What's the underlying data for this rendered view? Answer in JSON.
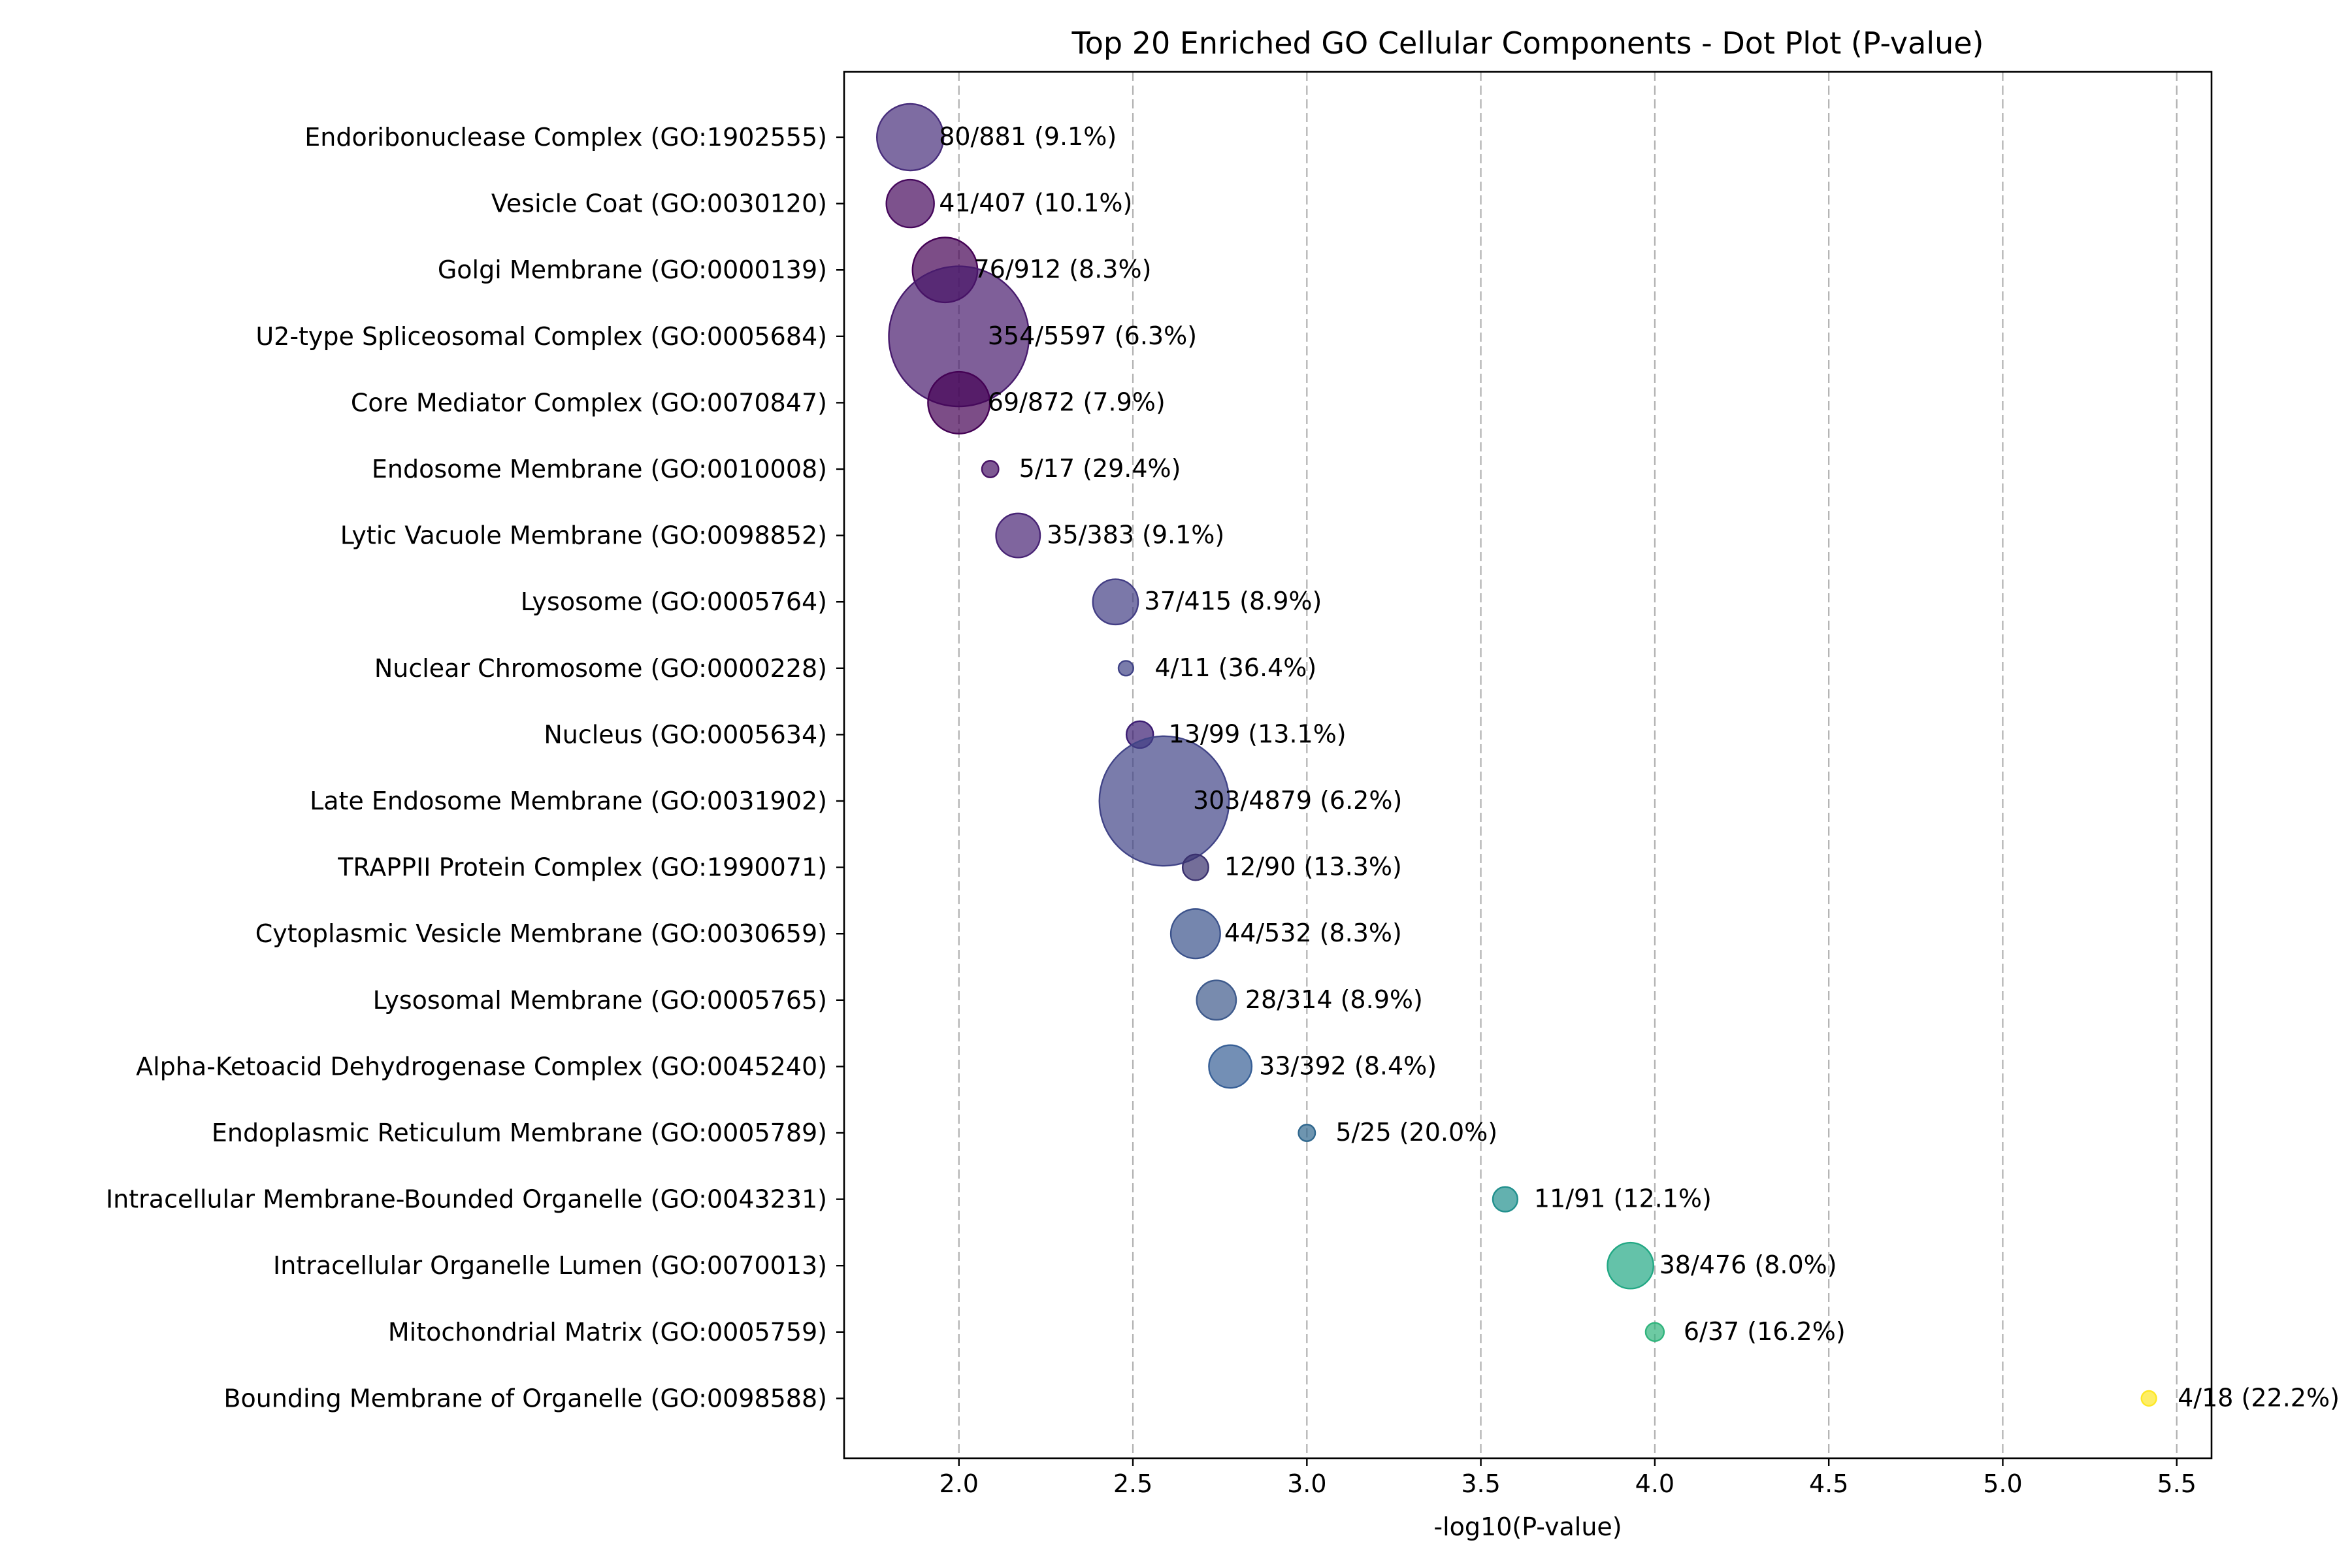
{
  "chart_data": {
    "type": "scatter",
    "title": "Top 20 Enriched GO Cellular Components - Dot Plot (P-value)",
    "xlabel": "-log10(P-value)",
    "ylabel": "",
    "xlim": [
      1.67,
      5.6
    ],
    "xticks": [
      "2.0",
      "2.5",
      "3.0",
      "3.5",
      "4.0",
      "4.5",
      "5.0",
      "5.5"
    ],
    "grid": "vertical dashed",
    "colormap": "viridis",
    "terms": [
      {
        "term": "Endoribonuclease Complex (GO:1902555)",
        "x": 1.86,
        "count": 80,
        "total": 881,
        "label": "80/881 (9.1%)",
        "color": "#472d7b"
      },
      {
        "term": "Vesicle Coat (GO:0030120)",
        "x": 1.86,
        "count": 41,
        "total": 407,
        "label": "41/407 (10.1%)",
        "color": "#46085c"
      },
      {
        "term": "Golgi Membrane (GO:0000139)",
        "x": 1.96,
        "count": 76,
        "total": 912,
        "label": "76/912 (8.3%)",
        "color": "#440154"
      },
      {
        "term": "U2-type Spliceosomal Complex (GO:0005684)",
        "x": 2.0,
        "count": 354,
        "total": 5597,
        "label": "354/5597 (6.3%)",
        "color": "#481b6d"
      },
      {
        "term": "Core Mediator Complex (GO:0070847)",
        "x": 2.0,
        "count": 69,
        "total": 872,
        "label": "69/872 (7.9%)",
        "color": "#440154"
      },
      {
        "term": "Endosome Membrane (GO:0010008)",
        "x": 2.09,
        "count": 5,
        "total": 17,
        "label": "5/17 (29.4%)",
        "color": "#471365"
      },
      {
        "term": "Lytic Vacuole Membrane (GO:0098852)",
        "x": 2.17,
        "count": 35,
        "total": 383,
        "label": "35/383 (9.1%)",
        "color": "#482475"
      },
      {
        "term": "Lysosome (GO:0005764)",
        "x": 2.45,
        "count": 37,
        "total": 415,
        "label": "37/415 (8.9%)",
        "color": "#433e85"
      },
      {
        "term": "Nuclear Chromosome (GO:0000228)",
        "x": 2.48,
        "count": 4,
        "total": 11,
        "label": "4/11 (36.4%)",
        "color": "#414487"
      },
      {
        "term": "Nucleus (GO:0005634)",
        "x": 2.52,
        "count": 13,
        "total": 99,
        "label": "13/99 (13.1%)",
        "color": "#3b1c72"
      },
      {
        "term": "Late Endosome Membrane (GO:0031902)",
        "x": 2.59,
        "count": 303,
        "total": 4879,
        "label": "303/4879 (6.2%)",
        "color": "#414487"
      },
      {
        "term": "TRAPPII Protein Complex (GO:1990071)",
        "x": 2.68,
        "count": 12,
        "total": 90,
        "label": "12/90 (13.3%)",
        "color": "#39306e"
      },
      {
        "term": "Cytoplasmic Vesicle Membrane (GO:0030659)",
        "x": 2.68,
        "count": 44,
        "total": 532,
        "label": "44/532 (8.3%)",
        "color": "#3b528b"
      },
      {
        "term": "Lysosomal Membrane (GO:0005765)",
        "x": 2.74,
        "count": 28,
        "total": 314,
        "label": "28/314 (8.9%)",
        "color": "#3e5a8c"
      },
      {
        "term": "Alpha-Ketoacid Dehydrogenase Complex (GO:0045240)",
        "x": 2.78,
        "count": 33,
        "total": 392,
        "label": "33/392 (8.4%)",
        "color": "#375f96"
      },
      {
        "term": "Endoplasmic Reticulum Membrane (GO:0005789)",
        "x": 3.0,
        "count": 5,
        "total": 25,
        "label": "5/25 (20.0%)",
        "color": "#31688e"
      },
      {
        "term": "Intracellular Membrane-Bounded Organelle (GO:0043231)",
        "x": 3.57,
        "count": 11,
        "total": 91,
        "label": "11/91 (12.1%)",
        "color": "#21908d"
      },
      {
        "term": "Intracellular Organelle Lumen (GO:0070013)",
        "x": 3.93,
        "count": 38,
        "total": 476,
        "label": "38/476 (8.0%)",
        "color": "#22a884"
      },
      {
        "term": "Mitochondrial Matrix (GO:0005759)",
        "x": 4.0,
        "count": 6,
        "total": 37,
        "label": "6/37 (16.2%)",
        "color": "#2fb47c"
      },
      {
        "term": "Bounding Membrane of Organelle (GO:0098588)",
        "x": 5.42,
        "count": 4,
        "total": 18,
        "label": "4/18 (22.2%)",
        "color": "#fde725"
      }
    ]
  }
}
